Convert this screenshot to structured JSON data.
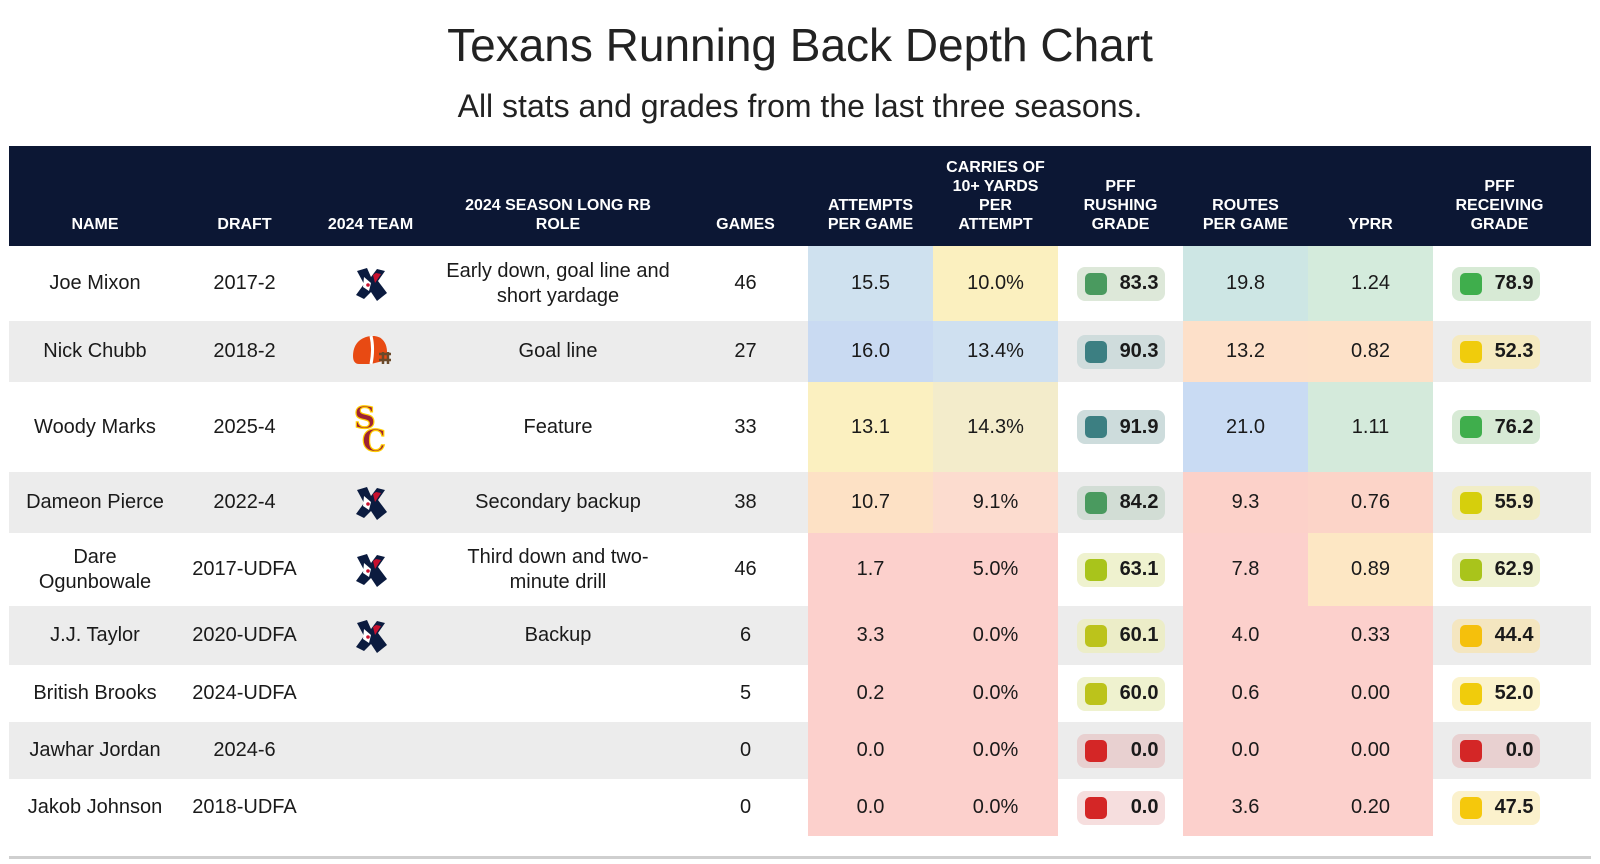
{
  "title": "Texans Running Back Depth Chart",
  "subtitle": "All stats and grades from the last three seasons.",
  "columns": [
    "NAME",
    "DRAFT",
    "2024 TEAM",
    "2024 SEASON LONG RB ROLE",
    "GAMES",
    "ATTEMPTS PER GAME",
    "CARRIES OF 10+ YARDS PER ATTEMPT",
    "PFF RUSHING GRADE",
    "ROUTES PER GAME",
    "YPRR",
    "PFF RECEIVING GRADE"
  ],
  "chart_data": {
    "type": "table",
    "title": "Texans Running Back Depth Chart",
    "subtitle": "All stats and grades from the last three seasons.",
    "columns": [
      "NAME",
      "DRAFT",
      "2024 TEAM",
      "2024 SEASON LONG RB ROLE",
      "GAMES",
      "ATTEMPTS PER GAME",
      "CARRIES OF 10+ YARDS PER ATTEMPT",
      "PFF RUSHING GRADE",
      "ROUTES PER GAME",
      "YPRR",
      "PFF RECEIVING GRADE"
    ],
    "rows": [
      {
        "name": "Joe Mixon",
        "draft": "2017-2",
        "team_logo": "texans-logo",
        "role": "Early down, goal line and short yardage",
        "games": "46",
        "att": "15.5",
        "c10": "10.0%",
        "rush": "83.3",
        "routes": "19.8",
        "yprr": "1.24",
        "rec": "78.9",
        "colors": {
          "att": "#cfe1ef",
          "c10": "#fbf0bf",
          "rush_bg": "#dde8d9",
          "rush_sq": "#4a9a5f",
          "routes": "#cde6e4",
          "yprr": "#d4ebdc",
          "rec_bg": "#d7ead5",
          "rec_sq": "#3fae4c"
        }
      },
      {
        "name": "Nick Chubb",
        "draft": "2018-2",
        "team_logo": "browns-helmet",
        "role": "Goal line",
        "games": "27",
        "att": "16.0",
        "c10": "13.4%",
        "rush": "90.3",
        "routes": "13.2",
        "yprr": "0.82",
        "rec": "52.3",
        "colors": {
          "att": "#c9daf2",
          "c10": "#cfe0f0",
          "rush_bg": "#cfdcdc",
          "rush_sq": "#3c7f82",
          "routes": "#fde0c9",
          "yprr": "#fde1c8",
          "rec_bg": "#f5eac0",
          "rec_sq": "#f0cc0c"
        }
      },
      {
        "name": "Woody Marks",
        "draft": "2025-4",
        "team_logo": "usc-logo",
        "role": "Feature",
        "games": "33",
        "att": "13.1",
        "c10": "14.3%",
        "rush": "91.9",
        "routes": "21.0",
        "yprr": "1.11",
        "rec": "76.2",
        "colors": {
          "att": "#fbf0c0",
          "c10": "#f3eccb",
          "rush_bg": "#cddcdc",
          "rush_sq": "#3c7f82",
          "routes": "#c9dbf3",
          "yprr": "#d4eadb",
          "rec_bg": "#d7ead5",
          "rec_sq": "#3fae4c"
        }
      },
      {
        "name": "Dameon Pierce",
        "draft": "2022-4",
        "team_logo": "texans-logo",
        "role": "Secondary backup",
        "games": "38",
        "att": "10.7",
        "c10": "9.1%",
        "rush": "84.2",
        "routes": "9.3",
        "yprr": "0.76",
        "rec": "55.9",
        "colors": {
          "att": "#fde1c5",
          "c10": "#fcdccf",
          "rush_bg": "#d2ddd5",
          "rush_sq": "#4a9a5f",
          "routes": "#fcd1c9",
          "yprr": "#fcd4c8",
          "rec_bg": "#f1edc6",
          "rec_sq": "#d6cf0c"
        }
      },
      {
        "name": "Dare Ogunbowale",
        "draft": "2017-UDFA",
        "team_logo": "texans-logo",
        "role": "Third down and two-minute drill",
        "games": "46",
        "att": "1.7",
        "c10": "5.0%",
        "rush": "63.1",
        "routes": "7.8",
        "yprr": "0.89",
        "rec": "62.9",
        "colors": {
          "att": "#fcd0cc",
          "c10": "#fcd0cc",
          "rush_bg": "#eff2cf",
          "rush_sq": "#a9c41b",
          "routes": "#fcd0cc",
          "yprr": "#fde7c4",
          "rec_bg": "#eef1cf",
          "rec_sq": "#a9c41b"
        }
      },
      {
        "name": "J.J. Taylor",
        "draft": "2020-UDFA",
        "team_logo": "texans-logo",
        "role": "Backup",
        "games": "6",
        "att": "3.3",
        "c10": "0.0%",
        "rush": "60.1",
        "routes": "4.0",
        "yprr": "0.33",
        "rec": "44.4",
        "colors": {
          "att": "#fcd0cc",
          "c10": "#fcd0cc",
          "rush_bg": "#ecedc8",
          "rush_sq": "#bcc31b",
          "routes": "#fcd0cc",
          "yprr": "#fcd0cc",
          "rec_bg": "#f4e6c0",
          "rec_sq": "#f5c00c"
        }
      },
      {
        "name": "British Brooks",
        "draft": "2024-UDFA",
        "team_logo": "",
        "role": "",
        "games": "5",
        "att": "0.2",
        "c10": "0.0%",
        "rush": "60.0",
        "routes": "0.6",
        "yprr": "0.00",
        "rec": "52.0",
        "colors": {
          "att": "#fcd0cc",
          "c10": "#fcd0cc",
          "rush_bg": "#eff2cf",
          "rush_sq": "#bcc31b",
          "routes": "#fcd0cc",
          "yprr": "#fcd0cc",
          "rec_bg": "#fbf3cc",
          "rec_sq": "#f0cc0c"
        }
      },
      {
        "name": "Jawhar Jordan",
        "draft": "2024-6",
        "team_logo": "",
        "role": "",
        "games": "0",
        "att": "0.0",
        "c10": "0.0%",
        "rush": "0.0",
        "routes": "0.0",
        "yprr": "0.00",
        "rec": "0.0",
        "colors": {
          "att": "#fcd0cc",
          "c10": "#fcd0cc",
          "rush_bg": "#e8d0d0",
          "rush_sq": "#d42626",
          "routes": "#fcd0cc",
          "yprr": "#fcd0cc",
          "rec_bg": "#e8d0d0",
          "rec_sq": "#d42626"
        }
      },
      {
        "name": "Jakob Johnson",
        "draft": "2018-UDFA",
        "team_logo": "",
        "role": "",
        "games": "0",
        "att": "0.0",
        "c10": "0.0%",
        "rush": "0.0",
        "routes": "3.6",
        "yprr": "0.20",
        "rec": "47.5",
        "colors": {
          "att": "#fcd0cc",
          "c10": "#fcd0cc",
          "rush_bg": "#f6dede",
          "rush_sq": "#d42626",
          "routes": "#fcd0cc",
          "yprr": "#fcd0cc",
          "rec_bg": "#fbf1cc",
          "rec_sq": "#f5c80c"
        }
      }
    ]
  }
}
